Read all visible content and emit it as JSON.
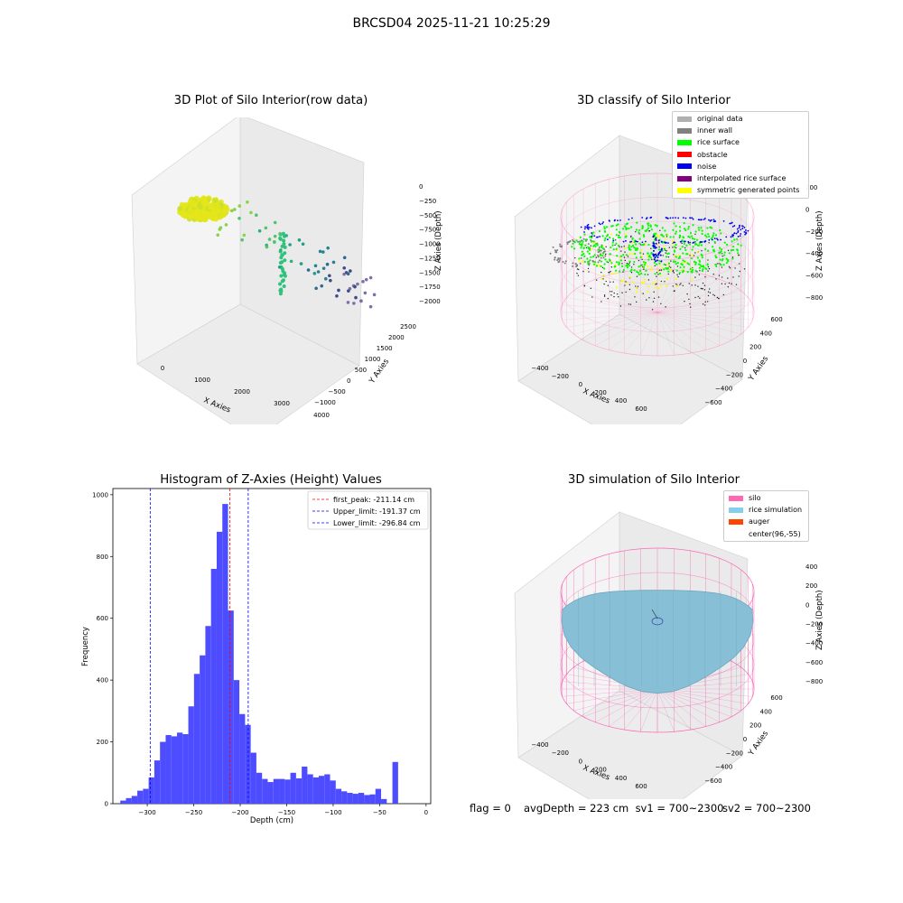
{
  "suptitle": "BRCSD04 2025-11-21 10:25:29",
  "panels": {
    "raw": {
      "title": "3D Plot of Silo Interior(row data)",
      "xlabel": "X Axies",
      "ylabel": "Y Axies",
      "zlabel": "Z Axies (Depth)",
      "xticks": [
        "0",
        "1000",
        "2000",
        "3000",
        "4000"
      ],
      "yticks": [
        "2500",
        "2000",
        "1500",
        "1000",
        "500",
        "0",
        "−500",
        "−1000"
      ],
      "zticks": [
        "0",
        "−250",
        "−500",
        "−750",
        "−1000",
        "−1250",
        "−1500",
        "−1750",
        "−2000"
      ]
    },
    "classify": {
      "title": "3D classify of Silo Interior",
      "xlabel": "X Axies",
      "ylabel": "Y Axies",
      "zlabel": "Z Axies (Depth)",
      "xticks": [
        "−400",
        "−200",
        "0",
        "200",
        "400",
        "600"
      ],
      "yticks": [
        "600",
        "400",
        "200",
        "0",
        "−200",
        "−400",
        "−600"
      ],
      "zticks": [
        "200",
        "0",
        "−200",
        "−400",
        "−600",
        "−800"
      ],
      "legend": [
        {
          "label": "original data",
          "color": "#b0b0b0"
        },
        {
          "label": "inner wall",
          "color": "#808080"
        },
        {
          "label": "rice surface",
          "color": "#00ff00"
        },
        {
          "label": "obstacle",
          "color": "#ff0000"
        },
        {
          "label": "noise",
          "color": "#0000ee"
        },
        {
          "label": "interpolated rice surface",
          "color": "#800080"
        },
        {
          "label": "symmetric generated points",
          "color": "#ffff00"
        }
      ]
    },
    "simulation": {
      "title": "3D simulation of Silo Interior",
      "xlabel": "X Axies",
      "ylabel": "Y Axies",
      "zlabel": "Z Axies (Depth)",
      "xticks": [
        "−400",
        "−200",
        "0",
        "200",
        "400",
        "600"
      ],
      "yticks": [
        "600",
        "400",
        "200",
        "0",
        "−200",
        "−400",
        "−600"
      ],
      "zticks": [
        "400",
        "200",
        "0",
        "−200",
        "−400",
        "−600",
        "−800"
      ],
      "legend": [
        {
          "label": "silo",
          "color": "#ff69b4"
        },
        {
          "label": "rice simulation",
          "color": "#87ceeb"
        },
        {
          "label": "auger",
          "color": "#ff4500"
        },
        {
          "label": "center(96,-55)",
          "color": "#ffffff"
        }
      ]
    }
  },
  "footer": {
    "flag": "flag = 0",
    "avg": "avgDepth = 223 cm  sv1 = 700~2300",
    "sv2": "sv2 = 700~2300"
  },
  "chart_data": [
    {
      "type": "bar",
      "title": "Histogram of Z-Axies (Height) Values",
      "xlabel": "Depth (cm)",
      "ylabel": "Frequency",
      "xlim": [
        -337,
        5
      ],
      "ylim": [
        0,
        1020
      ],
      "xticks": [
        -300,
        -250,
        -200,
        -150,
        -100,
        -50,
        0
      ],
      "yticks": [
        0,
        200,
        400,
        600,
        800,
        1000
      ],
      "bin_start": -329,
      "bin_width": 6.1,
      "values": [
        10,
        18,
        25,
        42,
        48,
        85,
        140,
        200,
        222,
        218,
        230,
        225,
        315,
        420,
        480,
        575,
        760,
        880,
        970,
        625,
        400,
        290,
        255,
        165,
        100,
        80,
        70,
        80,
        80,
        78,
        100,
        82,
        120,
        95,
        85,
        90,
        95,
        75,
        48,
        40,
        35,
        32,
        35,
        28,
        30,
        48,
        15,
        0,
        135
      ],
      "lines": [
        {
          "label": "first_peak: -211.14 cm",
          "value": -211.14,
          "color": "#ff0000"
        },
        {
          "label": "Upper_limit: -191.37 cm",
          "value": -191.37,
          "color": "#0000ff"
        },
        {
          "label": "Lower_limit: -296.84 cm",
          "value": -296.84,
          "color": "#0000ff"
        }
      ],
      "bar_color": "#4d4dff"
    }
  ]
}
